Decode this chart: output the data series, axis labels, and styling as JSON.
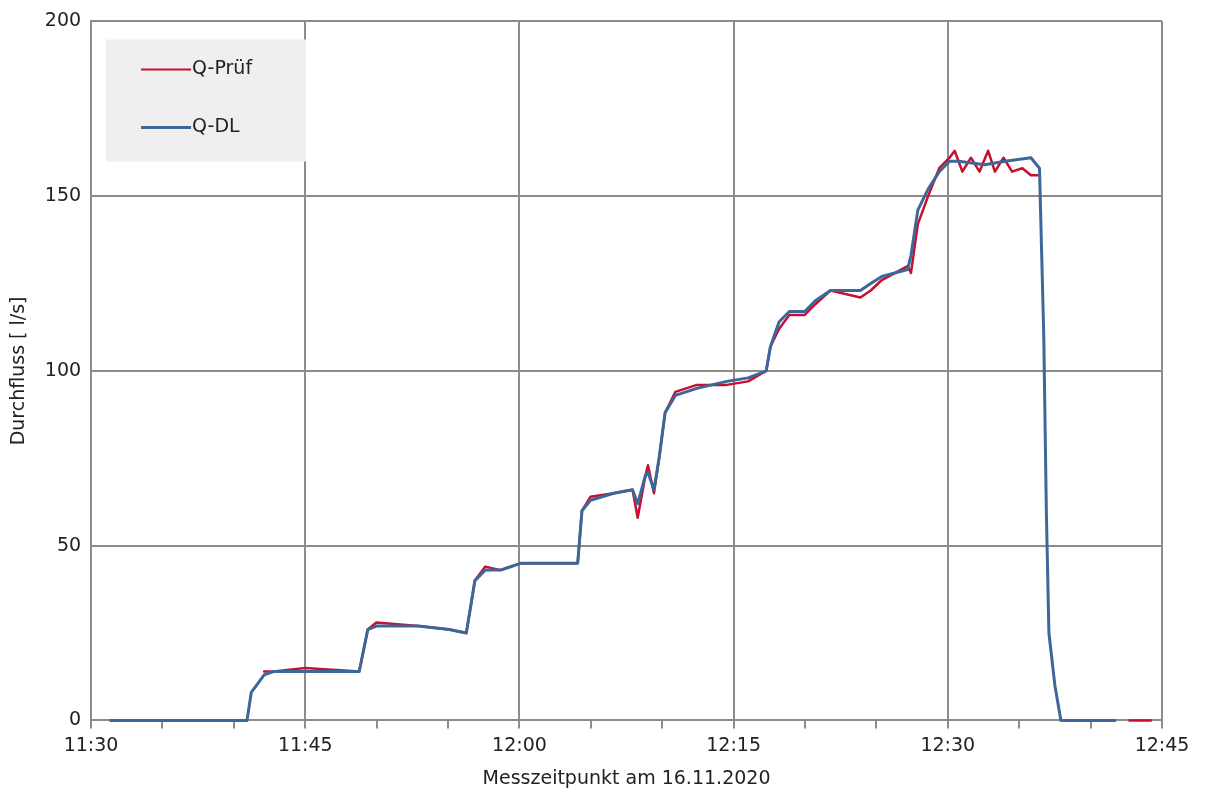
{
  "chart_data": {
    "type": "line",
    "xlabel": "Messzeitpunkt am 16.11.2020",
    "ylabel": "Durchfluss [ l/s]",
    "xlim": [
      11.5,
      12.75
    ],
    "xticks": [
      {
        "value": 11.5,
        "label": "11:30"
      },
      {
        "value": 11.5833,
        "label": null
      },
      {
        "value": 11.6667,
        "label": null
      },
      {
        "value": 11.75,
        "label": "11:45"
      },
      {
        "value": 11.8333,
        "label": null
      },
      {
        "value": 11.9167,
        "label": null
      },
      {
        "value": 12,
        "label": "12:00"
      },
      {
        "value": 12.0833,
        "label": null
      },
      {
        "value": 12.1667,
        "label": null
      },
      {
        "value": 12.25,
        "label": "12:15"
      },
      {
        "value": 12.3333,
        "label": null
      },
      {
        "value": 12.4167,
        "label": null
      },
      {
        "value": 12.5,
        "label": "12:30"
      },
      {
        "value": 12.5833,
        "label": null
      },
      {
        "value": 12.6667,
        "label": null
      },
      {
        "value": 12.75,
        "label": "12:45"
      }
    ],
    "ylim": [
      0,
      200
    ],
    "yticks": [
      0,
      50,
      100,
      150,
      200
    ],
    "grid": true,
    "legend": "top left",
    "marker": "none",
    "line_style": "solid",
    "series": [
      {
        "name": "Q-Prüf",
        "color": "#c8102e",
        "x": [
          11.702,
          11.713,
          11.75,
          11.813,
          11.823,
          11.833,
          11.882,
          11.918,
          11.938,
          11.948,
          11.96,
          11.978,
          12.002,
          12.043,
          12.068,
          12.073,
          12.083,
          12.11,
          12.132,
          12.138,
          12.147,
          12.15,
          12.157,
          12.163,
          12.17,
          12.182,
          12.207,
          12.242,
          12.267,
          12.288,
          12.293,
          12.303,
          12.315,
          12.333,
          12.345,
          12.363,
          12.398,
          12.41,
          12.423,
          12.453,
          12.457,
          12.465,
          12.477,
          12.49,
          12.502,
          12.508,
          12.517,
          12.527,
          12.537,
          12.547,
          12.555,
          12.565,
          12.575,
          12.587,
          12.597,
          12.607,
          12.612,
          12.712,
          12.737
        ],
        "values": [
          14,
          14,
          15,
          14,
          26,
          28,
          27,
          26,
          25,
          40,
          44,
          43,
          45,
          45,
          45,
          60,
          64,
          65,
          66,
          58,
          70,
          73,
          65,
          75,
          88,
          94,
          96,
          96,
          97,
          100,
          107,
          112,
          116,
          116,
          119,
          123,
          121,
          123,
          126,
          130,
          128,
          142,
          150,
          158,
          161,
          163,
          157,
          161,
          157,
          163,
          157,
          161,
          157,
          158,
          156,
          156,
          null,
          0,
          0
        ]
      },
      {
        "name": "Q-DL",
        "color": "#3e6799",
        "x": [
          11.523,
          11.682,
          11.687,
          11.702,
          11.713,
          11.813,
          11.823,
          11.833,
          11.882,
          11.918,
          11.938,
          11.948,
          11.96,
          11.978,
          12.002,
          12.043,
          12.068,
          12.073,
          12.083,
          12.11,
          12.132,
          12.138,
          12.147,
          12.15,
          12.157,
          12.163,
          12.17,
          12.182,
          12.207,
          12.242,
          12.267,
          12.288,
          12.293,
          12.303,
          12.315,
          12.333,
          12.345,
          12.363,
          12.398,
          12.41,
          12.423,
          12.453,
          12.457,
          12.465,
          12.477,
          12.49,
          12.502,
          12.513,
          12.543,
          12.567,
          12.597,
          12.607,
          12.612,
          12.615,
          12.618,
          12.625,
          12.632,
          12.695
        ],
        "values": [
          0,
          0,
          8,
          13,
          14,
          14,
          26,
          27,
          27,
          26,
          25,
          40,
          43,
          43,
          45,
          45,
          45,
          60,
          63,
          65,
          66,
          62,
          70,
          71,
          66,
          75,
          88,
          93,
          95,
          97,
          98,
          100,
          107,
          114,
          117,
          117,
          120,
          123,
          123,
          125,
          127,
          129,
          133,
          146,
          152,
          157,
          160,
          160,
          159,
          160,
          161,
          158,
          110,
          60,
          25,
          10,
          0,
          0
        ]
      }
    ]
  }
}
